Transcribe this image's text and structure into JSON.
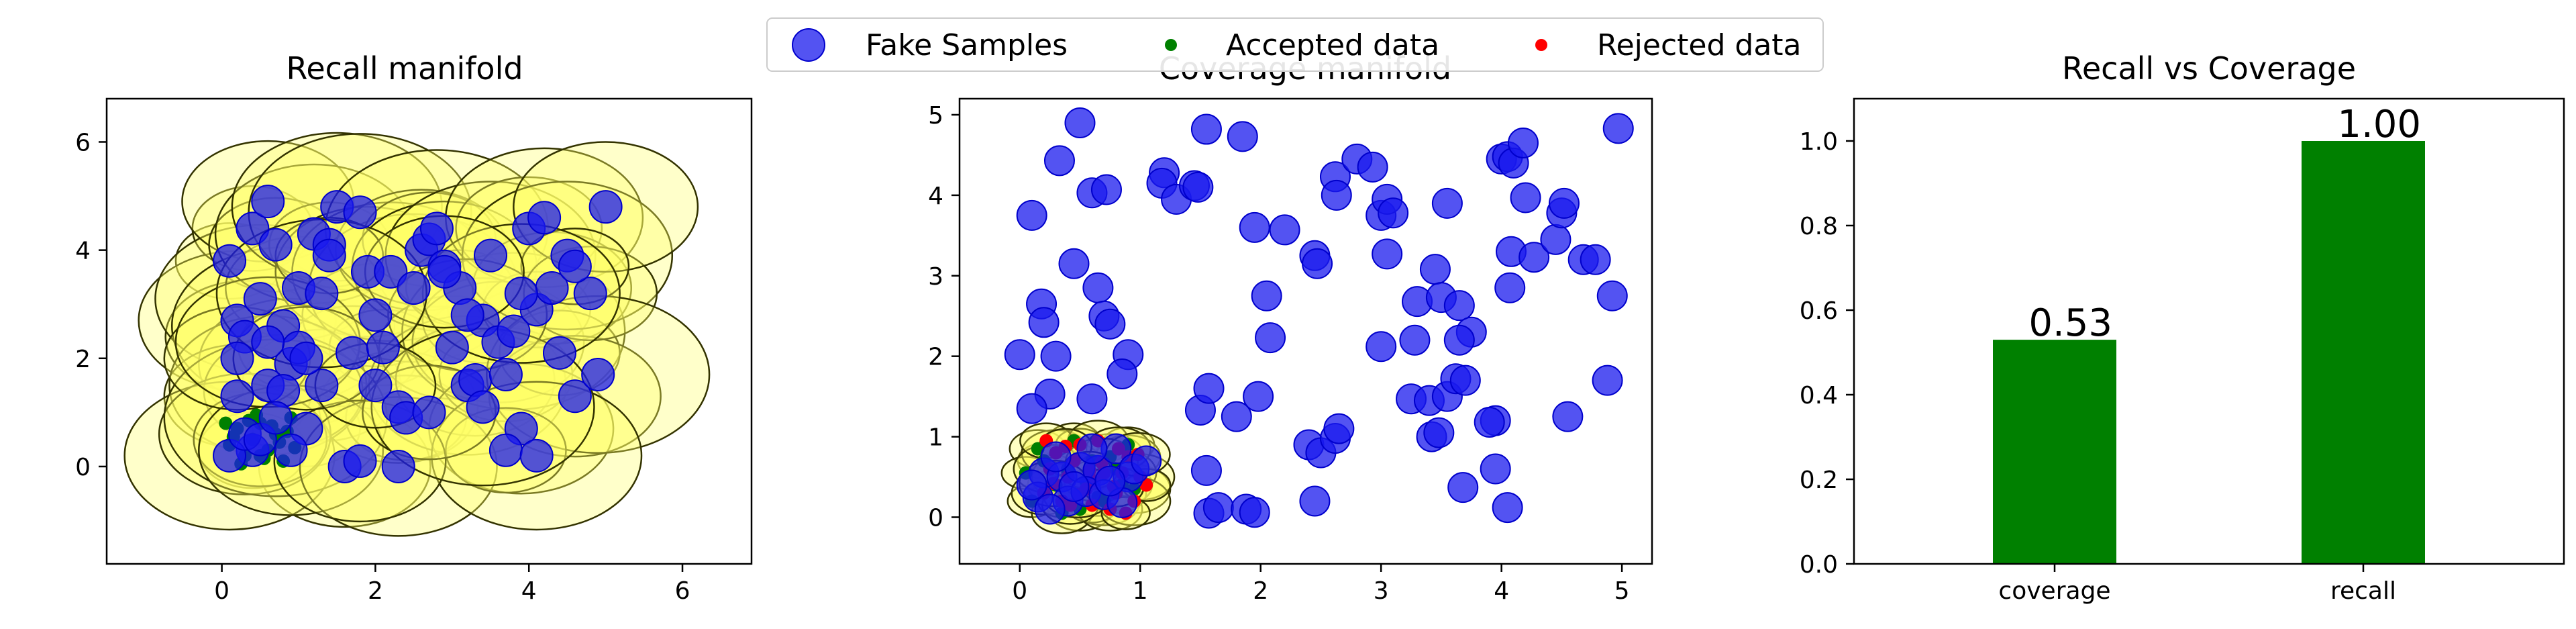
{
  "legend": {
    "placement": "top-center",
    "entries": [
      {
        "label": "Fake Samples",
        "color": "#0000ee"
      },
      {
        "label": "Accepted data",
        "color": "#008000"
      },
      {
        "label": "Rejected data",
        "color": "#ff0000"
      }
    ]
  },
  "chart_data": [
    {
      "type": "scatter",
      "title": "Recall manifold",
      "xlabel": "",
      "ylabel": "",
      "xlim": [
        -1.5,
        6.9
      ],
      "ylim": [
        -1.8,
        6.8
      ],
      "xticks": [
        0,
        2,
        4,
        6
      ],
      "yticks": [
        0,
        2,
        4,
        6
      ],
      "grid": false,
      "circle_fill": "#ffff66",
      "circle_stroke": "#333300",
      "marker_color": "#1a1aee",
      "accepted_color": "#008000",
      "series": [
        {
          "name": "Fake Samples",
          "points": [
            [
              0.1,
              3.8
            ],
            [
              0.2,
              2.7
            ],
            [
              0.3,
              2.4
            ],
            [
              0.4,
              4.4
            ],
            [
              0.5,
              3.1
            ],
            [
              0.6,
              4.9
            ],
            [
              0.7,
              4.1
            ],
            [
              0.8,
              2.6
            ],
            [
              0.9,
              1.9
            ],
            [
              1.0,
              3.3
            ],
            [
              1.1,
              0.7
            ],
            [
              1.2,
              4.3
            ],
            [
              1.3,
              1.5
            ],
            [
              1.4,
              4.1
            ],
            [
              1.5,
              4.8
            ],
            [
              1.6,
              0.0
            ],
            [
              1.7,
              2.1
            ],
            [
              1.8,
              4.7
            ],
            [
              1.9,
              3.6
            ],
            [
              2.0,
              2.8
            ],
            [
              2.1,
              2.2
            ],
            [
              2.2,
              3.6
            ],
            [
              2.3,
              1.1
            ],
            [
              2.4,
              0.9
            ],
            [
              2.5,
              3.3
            ],
            [
              2.6,
              4.0
            ],
            [
              2.7,
              4.2
            ],
            [
              2.8,
              4.4
            ],
            [
              2.9,
              3.7
            ],
            [
              3.0,
              2.2
            ],
            [
              3.1,
              3.3
            ],
            [
              3.2,
              1.5
            ],
            [
              3.3,
              1.6
            ],
            [
              3.4,
              2.7
            ],
            [
              3.5,
              3.9
            ],
            [
              3.6,
              2.3
            ],
            [
              3.7,
              1.7
            ],
            [
              3.8,
              2.5
            ],
            [
              3.9,
              0.7
            ],
            [
              4.0,
              4.4
            ],
            [
              4.1,
              2.9
            ],
            [
              4.2,
              4.6
            ],
            [
              4.3,
              3.3
            ],
            [
              4.4,
              2.1
            ],
            [
              4.5,
              3.9
            ],
            [
              4.6,
              1.3
            ],
            [
              4.8,
              3.2
            ],
            [
              4.9,
              1.7
            ],
            [
              5.0,
              4.8
            ],
            [
              0.2,
              1.3
            ],
            [
              0.4,
              0.3
            ],
            [
              0.6,
              1.5
            ],
            [
              0.8,
              1.4
            ],
            [
              1.0,
              2.2
            ],
            [
              0.1,
              0.2
            ],
            [
              0.3,
              0.6
            ],
            [
              0.5,
              0.5
            ],
            [
              0.7,
              0.9
            ],
            [
              0.9,
              0.3
            ],
            [
              0.2,
              2.0
            ],
            [
              1.4,
              3.9
            ],
            [
              2.3,
              0.0
            ],
            [
              3.2,
              2.8
            ],
            [
              3.7,
              0.3
            ],
            [
              4.1,
              0.2
            ],
            [
              1.8,
              0.1
            ],
            [
              2.7,
              1.0
            ],
            [
              3.4,
              1.1
            ],
            [
              0.6,
              2.3
            ],
            [
              1.1,
              2.0
            ],
            [
              4.6,
              3.7
            ],
            [
              3.9,
              3.2
            ],
            [
              2.9,
              3.6
            ],
            [
              2.0,
              1.5
            ],
            [
              1.3,
              3.2
            ]
          ]
        },
        {
          "name": "Accepted data",
          "points": [
            [
              0.1,
              0.4
            ],
            [
              0.2,
              0.7
            ],
            [
              0.3,
              0.2
            ],
            [
              0.4,
              0.5
            ],
            [
              0.5,
              0.8
            ],
            [
              0.6,
              0.3
            ],
            [
              0.7,
              0.6
            ],
            [
              0.8,
              0.1
            ],
            [
              0.9,
              0.9
            ],
            [
              0.15,
              0.55
            ],
            [
              0.35,
              0.85
            ],
            [
              0.55,
              0.15
            ],
            [
              0.75,
              0.45
            ],
            [
              0.95,
              0.35
            ],
            [
              0.25,
              0.05
            ],
            [
              0.45,
              0.95
            ],
            [
              0.65,
              0.75
            ],
            [
              0.85,
              0.65
            ],
            [
              0.05,
              0.8
            ],
            [
              0.5,
              0.2
            ]
          ]
        }
      ]
    },
    {
      "type": "scatter",
      "title": "Coverage manifold",
      "xlabel": "",
      "ylabel": "",
      "xlim": [
        -0.5,
        5.25
      ],
      "ylim": [
        -0.58,
        5.2
      ],
      "xticks": [
        0,
        1,
        2,
        3,
        4,
        5
      ],
      "yticks": [
        0,
        1,
        2,
        3,
        4,
        5
      ],
      "grid": false,
      "circle_fill": "#ffff66",
      "circle_stroke": "#333300",
      "marker_color": "#1a1aee",
      "series": [
        {
          "name": "Fake Samples",
          "points": [
            [
              0.1,
              3.75
            ],
            [
              0.5,
              4.9
            ],
            [
              0.33,
              4.43
            ],
            [
              0.6,
              4.03
            ],
            [
              0.72,
              4.07
            ],
            [
              1.2,
              4.28
            ],
            [
              1.18,
              4.15
            ],
            [
              1.3,
              3.95
            ],
            [
              1.45,
              4.12
            ],
            [
              1.48,
              4.1
            ],
            [
              1.55,
              4.82
            ],
            [
              1.85,
              4.73
            ],
            [
              0.45,
              3.15
            ],
            [
              0.65,
              2.85
            ],
            [
              0.7,
              2.5
            ],
            [
              0.75,
              2.4
            ],
            [
              0.18,
              2.65
            ],
            [
              0.2,
              2.42
            ],
            [
              0.0,
              2.02
            ],
            [
              0.3,
              2.0
            ],
            [
              0.9,
              2.02
            ],
            [
              0.85,
              1.78
            ],
            [
              0.6,
              1.47
            ],
            [
              0.25,
              1.53
            ],
            [
              0.1,
              1.35
            ],
            [
              1.5,
              1.33
            ],
            [
              1.57,
              1.6
            ],
            [
              1.8,
              1.25
            ],
            [
              1.98,
              1.5
            ],
            [
              1.95,
              3.6
            ],
            [
              2.2,
              3.57
            ],
            [
              2.45,
              3.25
            ],
            [
              2.47,
              3.15
            ],
            [
              2.05,
              2.75
            ],
            [
              2.08,
              2.23
            ],
            [
              2.4,
              0.9
            ],
            [
              2.5,
              0.8
            ],
            [
              2.62,
              0.98
            ],
            [
              2.65,
              1.1
            ],
            [
              2.45,
              0.2
            ],
            [
              1.57,
              0.05
            ],
            [
              1.65,
              0.12
            ],
            [
              1.88,
              0.1
            ],
            [
              1.95,
              0.06
            ],
            [
              1.55,
              0.58
            ],
            [
              2.62,
              4.23
            ],
            [
              2.63,
              4.0
            ],
            [
              2.8,
              4.45
            ],
            [
              2.93,
              4.35
            ],
            [
              3.0,
              3.75
            ],
            [
              3.05,
              3.95
            ],
            [
              3.1,
              3.78
            ],
            [
              3.05,
              3.27
            ],
            [
              3.3,
              2.68
            ],
            [
              3.45,
              3.08
            ],
            [
              3.5,
              2.73
            ],
            [
              3.65,
              2.63
            ],
            [
              3.75,
              2.3
            ],
            [
              3.65,
              2.2
            ],
            [
              3.55,
              3.9
            ],
            [
              3.0,
              2.12
            ],
            [
              3.28,
              2.2
            ],
            [
              3.25,
              1.47
            ],
            [
              3.4,
              1.45
            ],
            [
              3.42,
              1.0
            ],
            [
              3.48,
              1.05
            ],
            [
              3.55,
              1.5
            ],
            [
              3.62,
              1.72
            ],
            [
              3.7,
              1.7
            ],
            [
              3.68,
              0.37
            ],
            [
              3.95,
              1.2
            ],
            [
              3.9,
              1.18
            ],
            [
              3.95,
              0.6
            ],
            [
              4.05,
              0.12
            ],
            [
              4.0,
              4.45
            ],
            [
              4.05,
              4.48
            ],
            [
              4.1,
              4.4
            ],
            [
              4.18,
              4.65
            ],
            [
              4.2,
              3.97
            ],
            [
              4.08,
              3.3
            ],
            [
              4.27,
              3.23
            ],
            [
              4.45,
              3.45
            ],
            [
              4.5,
              3.78
            ],
            [
              4.52,
              3.9
            ],
            [
              4.07,
              2.85
            ],
            [
              4.68,
              3.2
            ],
            [
              4.78,
              3.2
            ],
            [
              4.55,
              1.25
            ],
            [
              4.88,
              1.7
            ],
            [
              4.92,
              2.75
            ],
            [
              4.97,
              4.83
            ],
            [
              0.2,
              0.55
            ],
            [
              0.35,
              0.5
            ],
            [
              0.5,
              0.62
            ],
            [
              0.65,
              0.58
            ],
            [
              0.8,
              0.85
            ],
            [
              0.9,
              0.5
            ],
            [
              0.15,
              0.25
            ],
            [
              0.4,
              0.2
            ],
            [
              0.55,
              0.32
            ],
            [
              0.7,
              0.28
            ],
            [
              0.85,
              0.18
            ],
            [
              0.95,
              0.6
            ],
            [
              1.05,
              0.7
            ],
            [
              0.3,
              0.75
            ],
            [
              0.1,
              0.4
            ],
            [
              0.6,
              0.85
            ],
            [
              0.75,
              0.45
            ],
            [
              0.25,
              0.1
            ],
            [
              0.45,
              0.38
            ]
          ]
        },
        {
          "name": "Accepted data",
          "points": [
            [
              0.1,
              0.2
            ],
            [
              0.2,
              0.7
            ],
            [
              0.3,
              0.4
            ],
            [
              0.4,
              0.6
            ],
            [
              0.5,
              0.1
            ],
            [
              0.6,
              0.7
            ],
            [
              0.7,
              0.2
            ],
            [
              0.8,
              0.6
            ],
            [
              0.9,
              0.9
            ],
            [
              0.15,
              0.85
            ],
            [
              0.35,
              0.05
            ],
            [
              0.55,
              0.45
            ],
            [
              0.75,
              0.75
            ],
            [
              0.95,
              0.35
            ],
            [
              0.05,
              0.55
            ],
            [
              0.45,
              0.95
            ],
            [
              0.65,
              0.25
            ],
            [
              0.85,
              0.4
            ]
          ]
        },
        {
          "name": "Rejected data",
          "points": [
            [
              0.2,
              0.3
            ],
            [
              0.3,
              0.8
            ],
            [
              0.4,
              0.5
            ],
            [
              0.5,
              0.9
            ],
            [
              0.6,
              0.15
            ],
            [
              0.7,
              0.55
            ],
            [
              0.8,
              0.3
            ],
            [
              0.9,
              0.75
            ],
            [
              1.0,
              0.5
            ],
            [
              0.25,
              0.6
            ],
            [
              0.35,
              0.2
            ],
            [
              0.45,
              0.7
            ],
            [
              0.55,
              0.35
            ],
            [
              0.65,
              0.95
            ],
            [
              0.75,
              0.1
            ],
            [
              0.85,
              0.55
            ],
            [
              0.95,
              0.2
            ],
            [
              1.05,
              0.4
            ],
            [
              0.22,
              0.95
            ],
            [
              0.42,
              0.15
            ],
            [
              0.62,
              0.45
            ],
            [
              0.82,
              0.85
            ],
            [
              0.48,
              0.28
            ],
            [
              0.68,
              0.68
            ],
            [
              0.88,
              0.05
            ],
            [
              0.38,
              0.88
            ],
            [
              0.58,
              0.58
            ],
            [
              0.78,
              0.38
            ],
            [
              0.98,
              0.78
            ],
            [
              0.28,
              0.42
            ]
          ]
        }
      ]
    },
    {
      "type": "bar",
      "title": "Recall vs Coverage",
      "xlabel": "",
      "ylabel": "",
      "categories": [
        "coverage",
        "recall"
      ],
      "values": [
        0.53,
        1.0
      ],
      "value_labels": [
        "0.53",
        "1.00"
      ],
      "ylim": [
        0,
        1.1
      ],
      "yticks": [
        "0.0",
        "0.2",
        "0.4",
        "0.6",
        "0.8",
        "1.0"
      ],
      "bar_color": "#008000",
      "grid": false
    }
  ]
}
